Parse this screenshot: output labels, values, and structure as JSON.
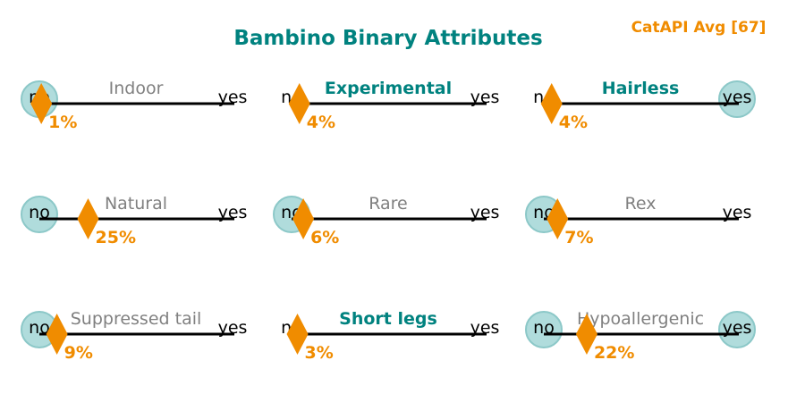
{
  "title": "Bambino Binary Attributes",
  "reference_label": "CatAPI Avg [67]",
  "colors": {
    "title": "#00827f",
    "accent": "#f08c00",
    "circle_fill": "#b0dcdc",
    "circle_stroke": "#8cc8c8",
    "label_default": "#808080",
    "label_highlight": "#00827f",
    "axis": "#000000"
  },
  "chart_data": {
    "type": "dot-strip",
    "title": "Bambino Binary Attributes",
    "scale": {
      "left_label": "no",
      "right_label": "yes",
      "range": [
        0,
        100
      ],
      "unit": "%"
    },
    "panels": [
      {
        "name": "Indoor",
        "percent": 1,
        "percent_label": "1%",
        "answer": "no",
        "highlighted": false
      },
      {
        "name": "Experimental",
        "percent": 4,
        "percent_label": "4%",
        "answer": "yes",
        "highlighted": true
      },
      {
        "name": "Hairless",
        "percent": 4,
        "percent_label": "4%",
        "answer": "yes",
        "highlighted": true
      },
      {
        "name": "Natural",
        "percent": 25,
        "percent_label": "25%",
        "answer": "no",
        "highlighted": false
      },
      {
        "name": "Rare",
        "percent": 6,
        "percent_label": "6%",
        "answer": "no",
        "highlighted": false
      },
      {
        "name": "Rex",
        "percent": 7,
        "percent_label": "7%",
        "answer": "no",
        "highlighted": false
      },
      {
        "name": "Suppressed tail",
        "percent": 9,
        "percent_label": "9%",
        "answer": "no",
        "highlighted": false
      },
      {
        "name": "Short legs",
        "percent": 3,
        "percent_label": "3%",
        "answer": "yes",
        "highlighted": true
      },
      {
        "name": "Hypoallergenic",
        "percent": 22,
        "percent_label": "22%",
        "answer": "no",
        "highlighted": false
      }
    ]
  }
}
